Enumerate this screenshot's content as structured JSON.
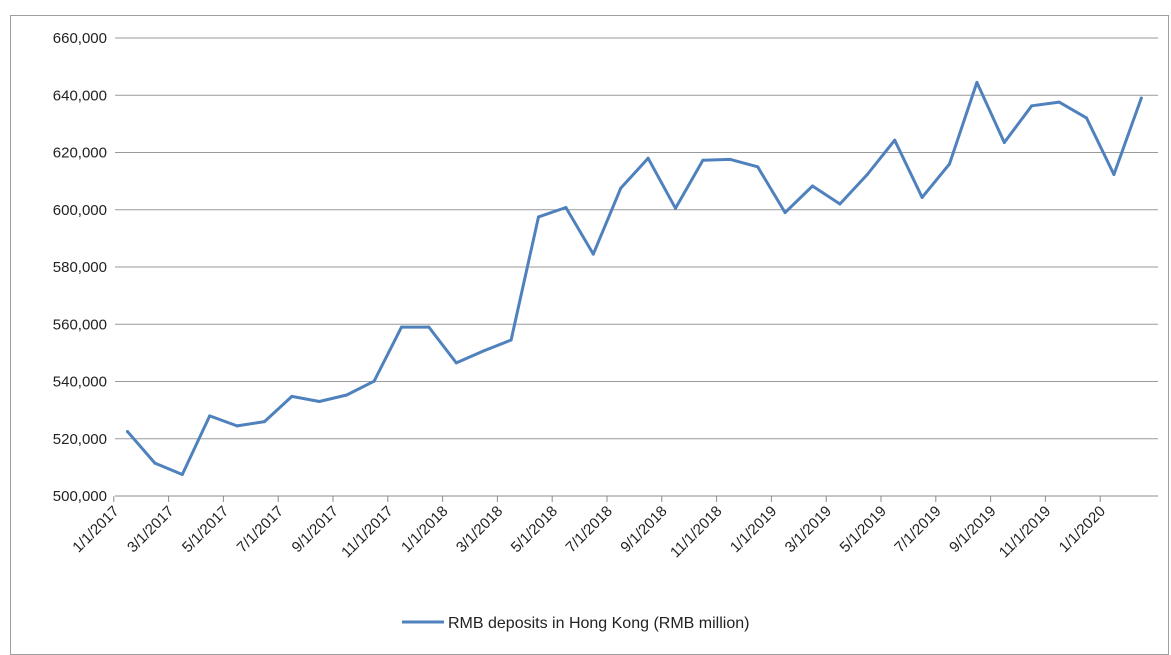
{
  "chart_data": {
    "type": "line",
    "title": "",
    "xlabel": "",
    "ylabel": "",
    "ylim": [
      500000,
      660000
    ],
    "y_ticks": [
      "500,000",
      "520,000",
      "540,000",
      "560,000",
      "580,000",
      "600,000",
      "620,000",
      "640,000",
      "660,000"
    ],
    "y_tick_values": [
      500000,
      520000,
      540000,
      560000,
      580000,
      600000,
      620000,
      640000,
      660000
    ],
    "x_tick_labels": [
      "1/1/2017",
      "3/1/2017",
      "5/1/2017",
      "7/1/2017",
      "9/1/2017",
      "11/1/2017",
      "1/1/2018",
      "3/1/2018",
      "5/1/2018",
      "7/1/2018",
      "9/1/2018",
      "11/1/2018",
      "1/1/2019",
      "3/1/2019",
      "5/1/2019",
      "7/1/2019",
      "9/1/2019",
      "11/1/2019",
      "1/1/2020"
    ],
    "x": [
      "2017-01",
      "2017-02",
      "2017-03",
      "2017-04",
      "2017-05",
      "2017-06",
      "2017-07",
      "2017-08",
      "2017-09",
      "2017-10",
      "2017-11",
      "2017-12",
      "2018-01",
      "2018-02",
      "2018-03",
      "2018-04",
      "2018-05",
      "2018-06",
      "2018-07",
      "2018-08",
      "2018-09",
      "2018-10",
      "2018-11",
      "2018-12",
      "2019-01",
      "2019-02",
      "2019-03",
      "2019-04",
      "2019-05",
      "2019-06",
      "2019-07",
      "2019-08",
      "2019-09",
      "2019-10",
      "2019-11",
      "2019-12",
      "2020-01",
      "2020-02"
    ],
    "series": [
      {
        "name": "RMB deposits in Hong Kong (RMB million)",
        "color": "#4f81bd",
        "values": [
          522500,
          511500,
          507500,
          528000,
          524500,
          526000,
          534800,
          533000,
          535300,
          540100,
          559000,
          559000,
          546500,
          550700,
          554500,
          597500,
          600800,
          584500,
          607500,
          618000,
          600500,
          617300,
          617600,
          615000,
          599000,
          608300,
          602000,
          612300,
          624300,
          604300,
          616000,
          644500,
          623500,
          636300,
          637600,
          632100,
          612300,
          639000
        ]
      }
    ],
    "grid": true,
    "legend_position": "bottom"
  }
}
